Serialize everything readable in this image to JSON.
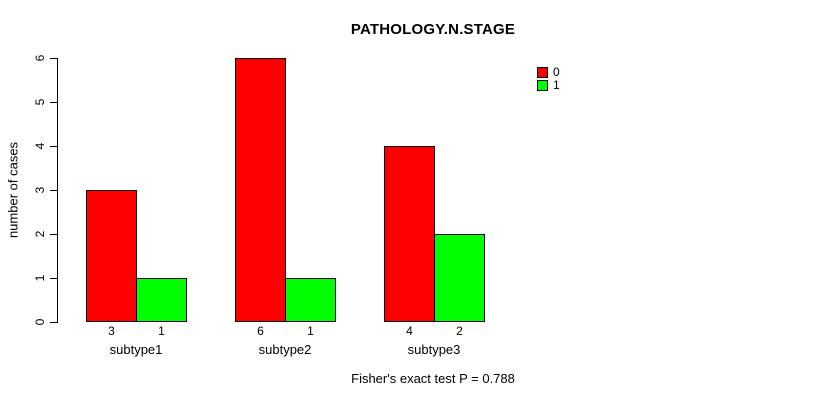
{
  "chart": {
    "title": "PATHOLOGY.N.STAGE",
    "ylabel": "number of cases",
    "footnote": "Fisher's exact test P = 0.788"
  },
  "legend": {
    "items": [
      {
        "label": "0",
        "color": "#FF0000"
      },
      {
        "label": "1",
        "color": "#00FF00"
      }
    ]
  },
  "chart_data": {
    "type": "bar",
    "title": "PATHOLOGY.N.STAGE",
    "xlabel": "",
    "ylabel": "number of cases",
    "categories": [
      "subtype1",
      "subtype2",
      "subtype3"
    ],
    "series": [
      {
        "name": "0",
        "color": "#FF0000",
        "values": [
          3,
          6,
          4
        ]
      },
      {
        "name": "1",
        "color": "#00FF00",
        "values": [
          1,
          1,
          2
        ]
      }
    ],
    "bar_value_labels": [
      [
        "3",
        "1"
      ],
      [
        "6",
        "1"
      ],
      [
        "4",
        "2"
      ]
    ],
    "yticks": [
      0,
      1,
      2,
      3,
      4,
      5,
      6
    ],
    "ylim": [
      0,
      6
    ],
    "grid": false,
    "legend_position": "topright",
    "annotation": "Fisher's exact test P = 0.788"
  }
}
